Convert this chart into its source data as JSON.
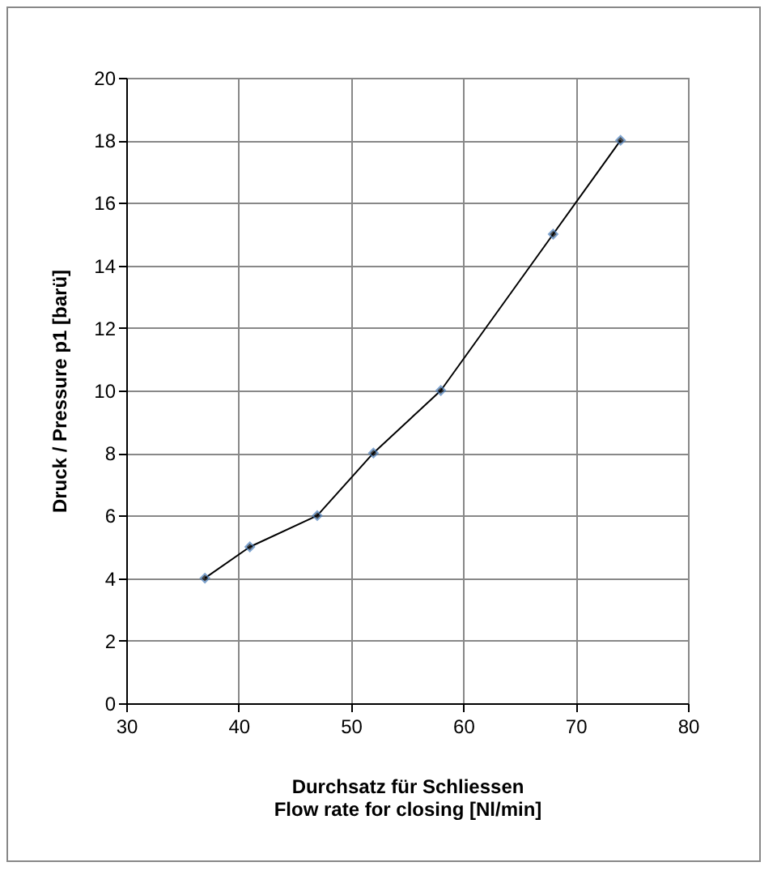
{
  "chart_data": {
    "type": "line",
    "x": [
      37,
      41,
      47,
      52,
      58,
      68,
      74
    ],
    "values": [
      4,
      5,
      6,
      8,
      10,
      15,
      18
    ],
    "color": "#000000",
    "marker": "diamond",
    "xlabel": "Durchsatz für Schliessen\nFlow rate for closing [Nl/min]",
    "ylabel": "Druck / Pressure p1 [barü]",
    "xlim": [
      30,
      80
    ],
    "xticks": [
      30,
      40,
      50,
      60,
      70,
      80
    ],
    "ylim": [
      0,
      20
    ],
    "yticks": [
      0,
      2,
      4,
      6,
      8,
      10,
      12,
      14,
      16,
      18,
      20
    ],
    "grid": true
  }
}
